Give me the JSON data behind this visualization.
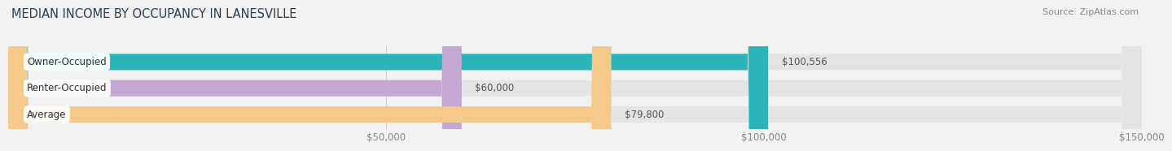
{
  "title": "MEDIAN INCOME BY OCCUPANCY IN LANESVILLE",
  "source": "Source: ZipAtlas.com",
  "categories": [
    "Owner-Occupied",
    "Renter-Occupied",
    "Average"
  ],
  "values": [
    100556,
    60000,
    79800
  ],
  "bar_colors": [
    "#2bb5b8",
    "#c4a8d4",
    "#f5c98a"
  ],
  "value_labels": [
    "$100,556",
    "$60,000",
    "$79,800"
  ],
  "xlim": [
    0,
    150000
  ],
  "xticks": [
    50000,
    100000,
    150000
  ],
  "xticklabels": [
    "$50,000",
    "$100,000",
    "$150,000"
  ],
  "background_color": "#f2f2f2",
  "bar_background_color": "#e4e4e4",
  "title_fontsize": 10.5,
  "source_fontsize": 8,
  "label_fontsize": 8.5,
  "value_fontsize": 8.5,
  "tick_fontsize": 8.5,
  "bar_height": 0.62,
  "bar_spacing": 1.0
}
